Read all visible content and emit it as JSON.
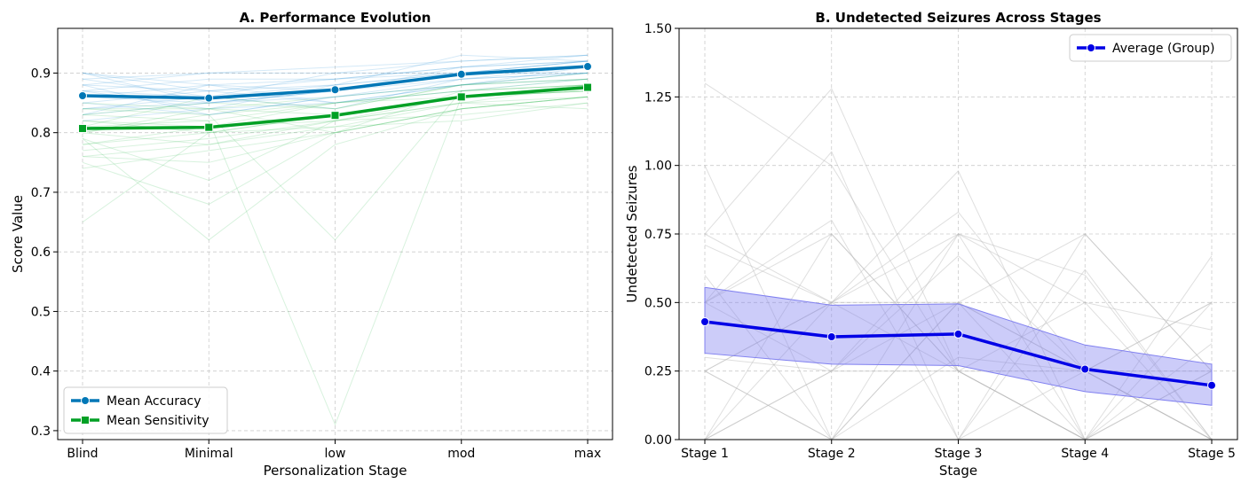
{
  "chart_data": [
    {
      "type": "line",
      "title": "A. Performance Evolution",
      "xlabel": "Personalization Stage",
      "ylabel": "Score Value",
      "categories": [
        "Blind",
        "Minimal",
        "low",
        "mod",
        "max"
      ],
      "ylim": [
        0.285,
        0.975
      ],
      "yticks": [
        "0.3",
        "0.4",
        "0.5",
        "0.6",
        "0.7",
        "0.8",
        "0.9"
      ],
      "grid": true,
      "legend_position": "bottom-left",
      "series": [
        {
          "name": "Mean Accuracy",
          "values": [
            0.862,
            0.858,
            0.872,
            0.898,
            0.911
          ],
          "color": "#0077b6",
          "marker": "circle"
        },
        {
          "name": "Mean Sensitivity",
          "values": [
            0.807,
            0.809,
            0.829,
            0.86,
            0.876
          ],
          "color": "#00a025",
          "marker": "square"
        }
      ],
      "background_accuracy": [
        [
          0.9,
          0.88,
          0.89,
          0.91,
          0.92
        ],
        [
          0.84,
          0.85,
          0.86,
          0.89,
          0.9
        ],
        [
          0.88,
          0.9,
          0.9,
          0.92,
          0.93
        ],
        [
          0.87,
          0.84,
          0.88,
          0.9,
          0.91
        ],
        [
          0.85,
          0.87,
          0.85,
          0.88,
          0.9
        ],
        [
          0.89,
          0.86,
          0.88,
          0.9,
          0.92
        ],
        [
          0.83,
          0.85,
          0.87,
          0.89,
          0.91
        ],
        [
          0.86,
          0.88,
          0.87,
          0.91,
          0.92
        ],
        [
          0.88,
          0.83,
          0.86,
          0.88,
          0.9
        ],
        [
          0.87,
          0.89,
          0.89,
          0.9,
          0.91
        ],
        [
          0.82,
          0.84,
          0.85,
          0.88,
          0.89
        ],
        [
          0.9,
          0.87,
          0.89,
          0.91,
          0.93
        ],
        [
          0.86,
          0.85,
          0.87,
          0.9,
          0.92
        ],
        [
          0.84,
          0.86,
          0.84,
          0.89,
          0.9
        ],
        [
          0.89,
          0.9,
          0.91,
          0.92,
          0.93
        ],
        [
          0.85,
          0.83,
          0.86,
          0.88,
          0.91
        ],
        [
          0.88,
          0.87,
          0.88,
          0.93,
          0.92
        ],
        [
          0.87,
          0.86,
          0.9,
          0.9,
          0.9
        ],
        [
          0.83,
          0.88,
          0.85,
          0.87,
          0.89
        ],
        [
          0.9,
          0.85,
          0.87,
          0.9,
          0.92
        ]
      ],
      "background_sensitivity": [
        [
          0.8,
          0.78,
          0.82,
          0.86,
          0.88
        ],
        [
          0.76,
          0.75,
          0.8,
          0.84,
          0.86
        ],
        [
          0.84,
          0.83,
          0.85,
          0.87,
          0.89
        ],
        [
          0.78,
          0.81,
          0.82,
          0.85,
          0.86
        ],
        [
          0.82,
          0.8,
          0.83,
          0.86,
          0.87
        ],
        [
          0.65,
          0.8,
          0.81,
          0.85,
          0.88
        ],
        [
          0.79,
          0.62,
          0.78,
          0.84,
          0.86
        ],
        [
          0.83,
          0.85,
          0.84,
          0.88,
          0.89
        ],
        [
          0.81,
          0.82,
          0.31,
          0.86,
          0.87
        ],
        [
          0.77,
          0.79,
          0.82,
          0.83,
          0.85
        ],
        [
          0.85,
          0.84,
          0.86,
          0.88,
          0.89
        ],
        [
          0.8,
          0.83,
          0.62,
          0.87,
          0.88
        ],
        [
          0.74,
          0.77,
          0.8,
          0.84,
          0.86
        ],
        [
          0.82,
          0.81,
          0.85,
          0.86,
          0.87
        ],
        [
          0.79,
          0.72,
          0.82,
          0.85,
          0.84
        ],
        [
          0.84,
          0.84,
          0.8,
          0.87,
          0.88
        ],
        [
          0.78,
          0.8,
          0.83,
          0.86,
          0.87
        ],
        [
          0.81,
          0.86,
          0.84,
          0.88,
          0.9
        ],
        [
          0.76,
          0.78,
          0.81,
          0.82,
          0.85
        ],
        [
          0.83,
          0.82,
          0.85,
          0.87,
          0.88
        ],
        [
          0.75,
          0.68,
          0.8,
          0.84,
          0.86
        ],
        [
          0.8,
          0.84,
          0.83,
          0.86,
          0.88
        ]
      ]
    },
    {
      "type": "line",
      "title": "B. Undetected Seizures Across Stages",
      "xlabel": "Stage",
      "ylabel": "Undetected Seizures",
      "categories": [
        "Stage 1",
        "Stage 2",
        "Stage 3",
        "Stage 4",
        "Stage 5"
      ],
      "ylim": [
        0,
        1.5
      ],
      "yticks": [
        "0.00",
        "0.25",
        "0.50",
        "0.75",
        "1.00",
        "1.25",
        "1.50"
      ],
      "grid": true,
      "legend_position": "top-right",
      "series": [
        {
          "name": "Average (Group)",
          "values": [
            0.43,
            0.375,
            0.385,
            0.257,
            0.198
          ],
          "color": "#0000e6",
          "marker": "circle"
        }
      ],
      "band": {
        "upper": [
          0.555,
          0.49,
          0.495,
          0.345,
          0.275
        ],
        "lower": [
          0.315,
          0.275,
          0.27,
          0.175,
          0.125
        ],
        "color": "#8080f0"
      },
      "background_lines": [
        [
          1.3,
          1.0,
          0.25,
          0.0,
          0.0
        ],
        [
          1.0,
          0.0,
          0.75,
          0.5,
          0.0
        ],
        [
          0.75,
          1.28,
          0.25,
          0.25,
          0.5
        ],
        [
          0.5,
          1.05,
          0.0,
          0.75,
          0.25
        ],
        [
          0.25,
          0.5,
          0.98,
          0.0,
          0.67
        ],
        [
          0.0,
          0.25,
          0.75,
          0.6,
          0.0
        ],
        [
          0.5,
          0.25,
          0.5,
          0.25,
          0.0
        ],
        [
          0.0,
          0.75,
          0.25,
          0.0,
          0.25
        ],
        [
          0.71,
          0.5,
          0.83,
          0.25,
          0.5
        ],
        [
          0.25,
          0.0,
          0.5,
          0.75,
          0.25
        ],
        [
          0.5,
          0.8,
          0.0,
          0.25,
          0.0
        ],
        [
          0.0,
          0.25,
          0.25,
          0.5,
          0.4
        ],
        [
          0.25,
          0.5,
          0.75,
          0.0,
          0.0
        ],
        [
          0.6,
          0.0,
          0.3,
          0.25,
          0.25
        ],
        [
          0.75,
          0.5,
          0.5,
          0.0,
          0.35
        ],
        [
          0.0,
          0.0,
          0.0,
          0.62,
          0.0
        ],
        [
          0.3,
          0.25,
          0.67,
          0.25,
          0.0
        ],
        [
          0.5,
          0.75,
          0.25,
          0.0,
          0.5
        ],
        [
          0.25,
          0.0,
          0.5,
          0.25,
          0.0
        ],
        [
          0.0,
          0.5,
          0.25,
          0.0,
          0.25
        ]
      ]
    }
  ]
}
